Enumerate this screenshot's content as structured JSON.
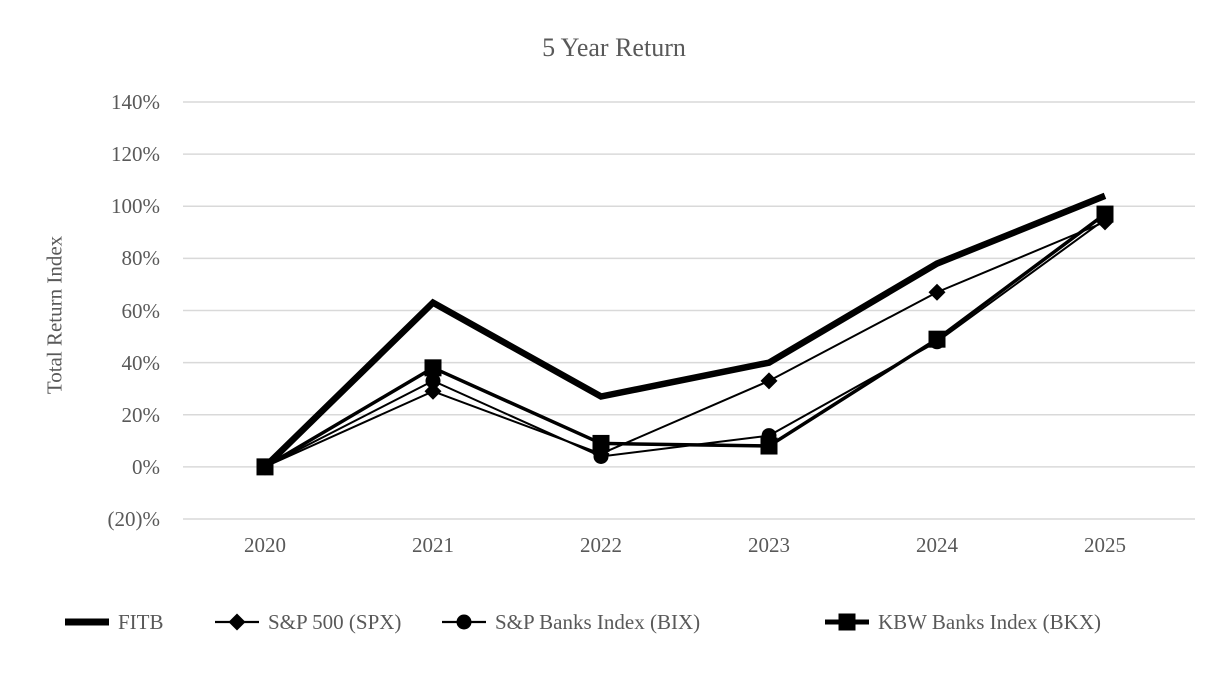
{
  "chart_data": {
    "type": "line",
    "title": "5 Year Return",
    "xlabel": "",
    "ylabel": "Total Return Index",
    "categories": [
      "2020",
      "2021",
      "2022",
      "2023",
      "2024",
      "2025"
    ],
    "series": [
      {
        "name": "FITB",
        "marker": "none",
        "line": "thick",
        "values": [
          0,
          63,
          27,
          40,
          78,
          104
        ]
      },
      {
        "name": "S&P 500 (SPX)",
        "marker": "diamond",
        "line": "thin",
        "values": [
          0,
          29,
          5,
          33,
          67,
          94
        ]
      },
      {
        "name": "S&P Banks Index (BIX)",
        "marker": "circle",
        "line": "thin",
        "values": [
          0,
          33,
          4,
          12,
          48,
          95
        ]
      },
      {
        "name": "KBW Banks Index (BKX)",
        "marker": "square",
        "line": "medium",
        "values": [
          0,
          38,
          9,
          8,
          49,
          97
        ]
      }
    ],
    "y_ticks": [
      {
        "value": 140,
        "label": "140%"
      },
      {
        "value": 120,
        "label": "120%"
      },
      {
        "value": 100,
        "label": "100%"
      },
      {
        "value": 80,
        "label": "80%"
      },
      {
        "value": 60,
        "label": "60%"
      },
      {
        "value": 40,
        "label": "40%"
      },
      {
        "value": 20,
        "label": "20%"
      },
      {
        "value": 0,
        "label": "0%"
      },
      {
        "value": -20,
        "label": "(20)%"
      }
    ],
    "ylim": [
      -20,
      140
    ],
    "grid": "horizontal",
    "legend_position": "bottom",
    "colors": {
      "series": "#000000",
      "text": "#595959",
      "gridline": "#d9d9d9",
      "background": "#ffffff"
    }
  }
}
